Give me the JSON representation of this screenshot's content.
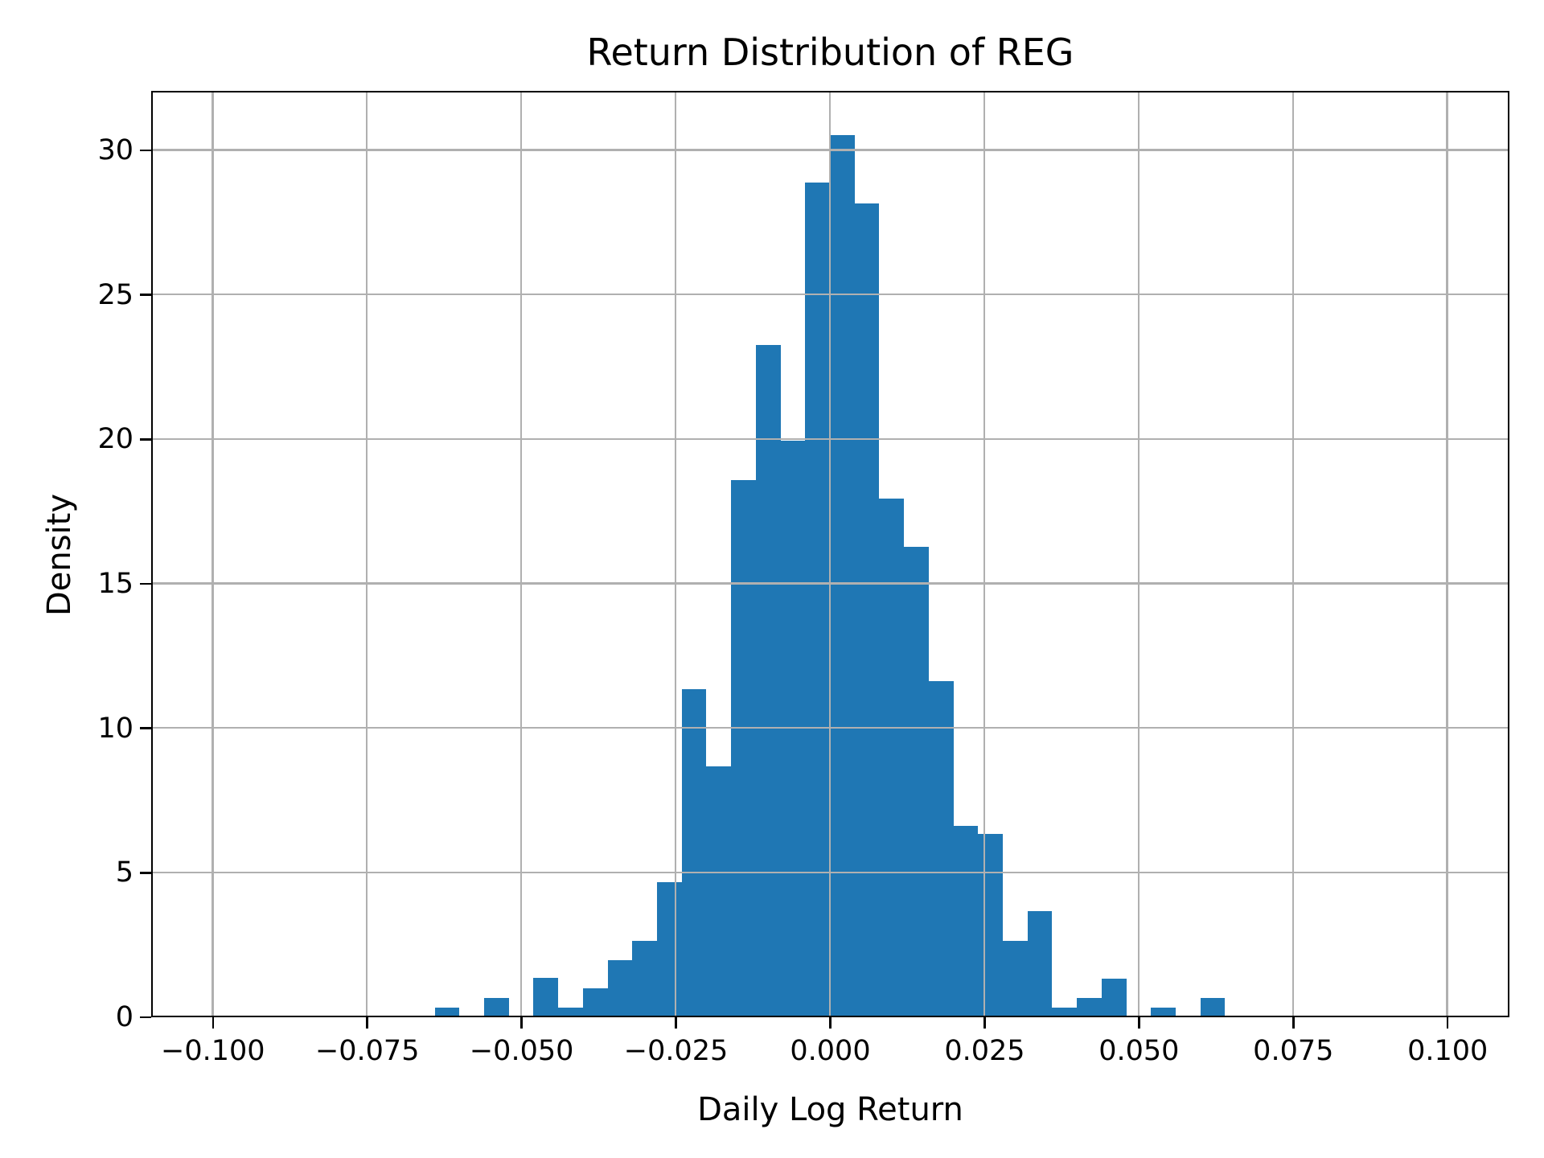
{
  "title": "Return Distribution of REG",
  "axes": {
    "xlabel": "Daily Log Return",
    "ylabel": "Density"
  },
  "chart_data": {
    "type": "bar",
    "subtype": "histogram",
    "title": "Return Distribution of REG",
    "xlabel": "Daily Log Return",
    "ylabel": "Density",
    "xlim": [
      -0.11,
      0.11
    ],
    "ylim": [
      0,
      32.06
    ],
    "grid": true,
    "grid_over_bars": true,
    "bar_color": "#1f77b4",
    "grid_color": "#b0b0b0",
    "spine_color": "#000000",
    "bin_width": 0.004,
    "bin_edges": [
      -0.064,
      -0.06,
      -0.056,
      -0.052,
      -0.048,
      -0.044,
      -0.04,
      -0.036,
      -0.032,
      -0.028,
      -0.024,
      -0.02,
      -0.016,
      -0.012,
      -0.008,
      -0.004,
      0.0,
      0.004,
      0.008,
      0.012,
      0.016,
      0.02,
      0.024,
      0.028,
      0.032,
      0.036,
      0.04,
      0.044,
      0.048,
      0.052,
      0.056,
      0.06,
      0.064
    ],
    "densities": [
      0.33,
      0,
      0.66,
      0,
      1.36,
      0.33,
      1.0,
      1.95,
      2.64,
      4.65,
      11.33,
      8.68,
      18.59,
      23.24,
      19.93,
      28.86,
      30.51,
      28.14,
      17.95,
      16.28,
      11.63,
      6.62,
      6.32,
      2.64,
      3.67,
      0.33,
      0.66,
      1.33,
      0,
      0.33,
      0,
      0.66
    ],
    "x_ticks": [
      -0.1,
      -0.075,
      -0.05,
      -0.025,
      0.0,
      0.025,
      0.05,
      0.075,
      0.1
    ],
    "x_tick_labels": [
      "−0.100",
      "−0.075",
      "−0.050",
      "−0.025",
      "0.000",
      "0.025",
      "0.050",
      "0.075",
      "0.100"
    ],
    "y_ticks": [
      0,
      5,
      10,
      15,
      20,
      25,
      30
    ],
    "y_tick_labels": [
      "0",
      "5",
      "10",
      "15",
      "20",
      "25",
      "30"
    ]
  }
}
